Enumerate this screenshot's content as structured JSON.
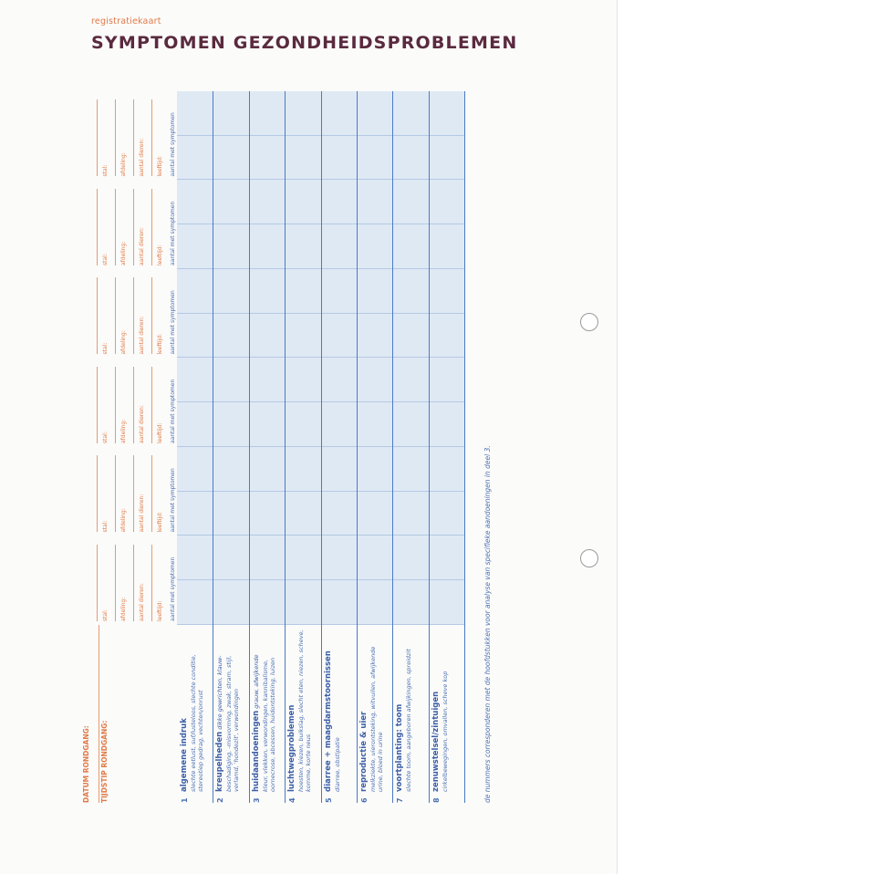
{
  "header": {
    "kicker": "registratiekaart",
    "title": "SYMPTOMEN GEZONDHEIDSPROBLEMEN"
  },
  "form": {
    "date_label": "DATUM RONDGANG:",
    "time_label": "TIJDSTIP RONDGANG:",
    "column_fields": {
      "stal": "stal:",
      "afdeling": "afdeling:",
      "aantal_dieren": "aantal dieren:",
      "leeftijd": "leeftijd:",
      "symptoms": "aantal met symptomen"
    },
    "column_count": 6,
    "rows": [
      {
        "num": "1",
        "title": "algemene indruk",
        "desc": "slechte eetlust, suf/lusteloos, slechte conditie, stereotiep gedrag, vechten/onrust"
      },
      {
        "num": "2",
        "title": "kreupelheden",
        "title_suffix": "dikke gewrichten, klauw-",
        "desc": "beschadiging, -misvorming, zwak, stram, stijl, verlamd, 'hondezit', verwondingen"
      },
      {
        "num": "3",
        "title": "huidaandoeningen",
        "title_suffix": "grauw, afwijkende",
        "desc": "kleur, vlekken, verwondingen, kannibalisme, oornecrose, abcessen, huidontsteking, luizen"
      },
      {
        "num": "4",
        "title": "luchtwegproblemen",
        "desc": "hoesten, kiezen, buikslag, slecht eten, niezen, scheve, komme, korte neus"
      },
      {
        "num": "5",
        "title": "diarree + maagdarmstoornissen",
        "desc": "diarree, obstipatie"
      },
      {
        "num": "6",
        "title": "reproductie & uier",
        "desc": "melkziekte, uierontsteking, witvuilen, afwijkende urine, bloed in urine"
      },
      {
        "num": "7",
        "title": "voortplanting: toom",
        "desc": "slechte toom, aangeboren afwijkingen, spreidzit"
      },
      {
        "num": "8",
        "title": "zenuwstelsel/zintuigen",
        "desc": "cirkelbewegingen, omvallen, scheve kop"
      }
    ],
    "footnote": "de nummers corresponderen met de hoofdstukken voor analyse van specifieke aandoeningen in deel 3."
  },
  "colors": {
    "accent_orange": "#e07a47",
    "title_purple": "#5a2a3e",
    "blue": "#4a6fb2",
    "grid_fill": "#dfe9f4"
  }
}
